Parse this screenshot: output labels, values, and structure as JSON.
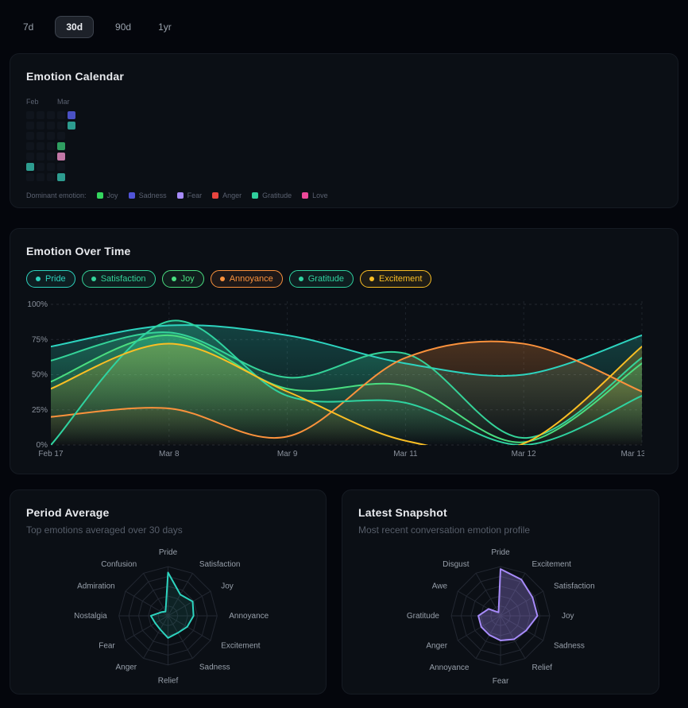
{
  "timerange": {
    "options": [
      {
        "label": "7d",
        "selected": false
      },
      {
        "label": "30d",
        "selected": true
      },
      {
        "label": "90d",
        "selected": false
      },
      {
        "label": "1yr",
        "selected": false
      }
    ]
  },
  "calendar_card": {
    "title": "Emotion Calendar",
    "months": [
      {
        "label": "Feb",
        "x": 0
      },
      {
        "label": "Mar",
        "x": 39
      }
    ],
    "legend_label": "Dominant emotion:",
    "legend": [
      {
        "label": "Joy",
        "color": "#34d65e"
      },
      {
        "label": "Sadness",
        "color": "#5154d8"
      },
      {
        "label": "Fear",
        "color": "#a78bfa"
      },
      {
        "label": "Anger",
        "color": "#e8453f"
      },
      {
        "label": "Gratitude",
        "color": "#2fce9c"
      },
      {
        "label": "Love",
        "color": "#ec4899"
      }
    ],
    "cell_colors": {
      "Sadness": "#4a51c4",
      "Gratitude": "#2d9c8f",
      "Joy": "#2f9e60",
      "Love": "#c277a6",
      "empty": "#10151d"
    },
    "grid": [
      [
        "empty",
        "empty",
        "empty",
        "empty",
        "Sadness"
      ],
      [
        "empty",
        "empty",
        "empty",
        "empty",
        "Gratitude"
      ],
      [
        "empty",
        "empty",
        "empty",
        "empty",
        "none"
      ],
      [
        "empty",
        "empty",
        "empty",
        "Joy",
        "none"
      ],
      [
        "empty",
        "empty",
        "empty",
        "Love",
        "none"
      ],
      [
        "Gratitude",
        "empty",
        "empty",
        "empty",
        "none"
      ],
      [
        "empty",
        "empty",
        "empty",
        "Gratitude",
        "none"
      ]
    ]
  },
  "overtime_card": {
    "title": "Emotion Over Time",
    "chips": [
      {
        "label": "Pride",
        "color": "#2dd4bf"
      },
      {
        "label": "Satisfaction",
        "color": "#34d399"
      },
      {
        "label": "Joy",
        "color": "#4ade80"
      },
      {
        "label": "Annoyance",
        "color": "#fb923c"
      },
      {
        "label": "Gratitude",
        "color": "#2fd3a0"
      },
      {
        "label": "Excitement",
        "color": "#fbbf24"
      }
    ]
  },
  "period_card": {
    "title": "Period Average",
    "subtitle": "Top emotions averaged over 30 days"
  },
  "snapshot_card": {
    "title": "Latest Snapshot",
    "subtitle": "Most recent conversation emotion profile"
  },
  "chart_data": [
    {
      "type": "area",
      "title": "Emotion Over Time",
      "x": [
        "Feb 17",
        "Mar 8",
        "Mar 9",
        "Mar 11",
        "Mar 12",
        "Mar 13"
      ],
      "ylim": [
        0,
        100
      ],
      "yticks": [
        "0%",
        "25%",
        "50%",
        "75%",
        "100%"
      ],
      "grid": true,
      "legend_position": "top-chips",
      "series": [
        {
          "name": "Pride",
          "color": "#2dd4bf",
          "values": [
            70,
            85,
            78,
            58,
            50,
            78
          ]
        },
        {
          "name": "Satisfaction",
          "color": "#34d399",
          "values": [
            60,
            80,
            48,
            65,
            5,
            62
          ]
        },
        {
          "name": "Joy",
          "color": "#4ade80",
          "values": [
            45,
            78,
            40,
            42,
            2,
            58
          ]
        },
        {
          "name": "Annoyance",
          "color": "#fb923c",
          "values": [
            20,
            26,
            6,
            62,
            72,
            38
          ]
        },
        {
          "name": "Gratitude",
          "color": "#2fd3a0",
          "values": [
            0,
            88,
            35,
            30,
            0,
            35
          ]
        },
        {
          "name": "Excitement",
          "color": "#fbbf24",
          "values": [
            40,
            72,
            38,
            3,
            1,
            70
          ]
        }
      ]
    },
    {
      "type": "radar",
      "title": "Period Average",
      "axes": [
        "Pride",
        "Satisfaction",
        "Joy",
        "Annoyance",
        "Excitement",
        "Sadness",
        "Relief",
        "Anger",
        "Fear",
        "Nostalgia",
        "Admiration",
        "Confusion"
      ],
      "values": [
        0.88,
        0.5,
        0.58,
        0.52,
        0.45,
        0.4,
        0.45,
        0.32,
        0.3,
        0.35,
        0.15,
        0.1
      ],
      "max": 1,
      "rings": 5,
      "color": "#2dd4bf",
      "fill_opacity": 0.1
    },
    {
      "type": "radar",
      "title": "Latest Snapshot",
      "axes": [
        "Pride",
        "Excitement",
        "Satisfaction",
        "Joy",
        "Sadness",
        "Relief",
        "Fear",
        "Annoyance",
        "Anger",
        "Gratitude",
        "Awe",
        "Disgust"
      ],
      "values": [
        0.95,
        0.85,
        0.75,
        0.75,
        0.6,
        0.55,
        0.5,
        0.45,
        0.45,
        0.45,
        0.28,
        0.08
      ],
      "max": 1,
      "rings": 5,
      "color": "#a78bfa",
      "fill_opacity": 0.3
    }
  ]
}
